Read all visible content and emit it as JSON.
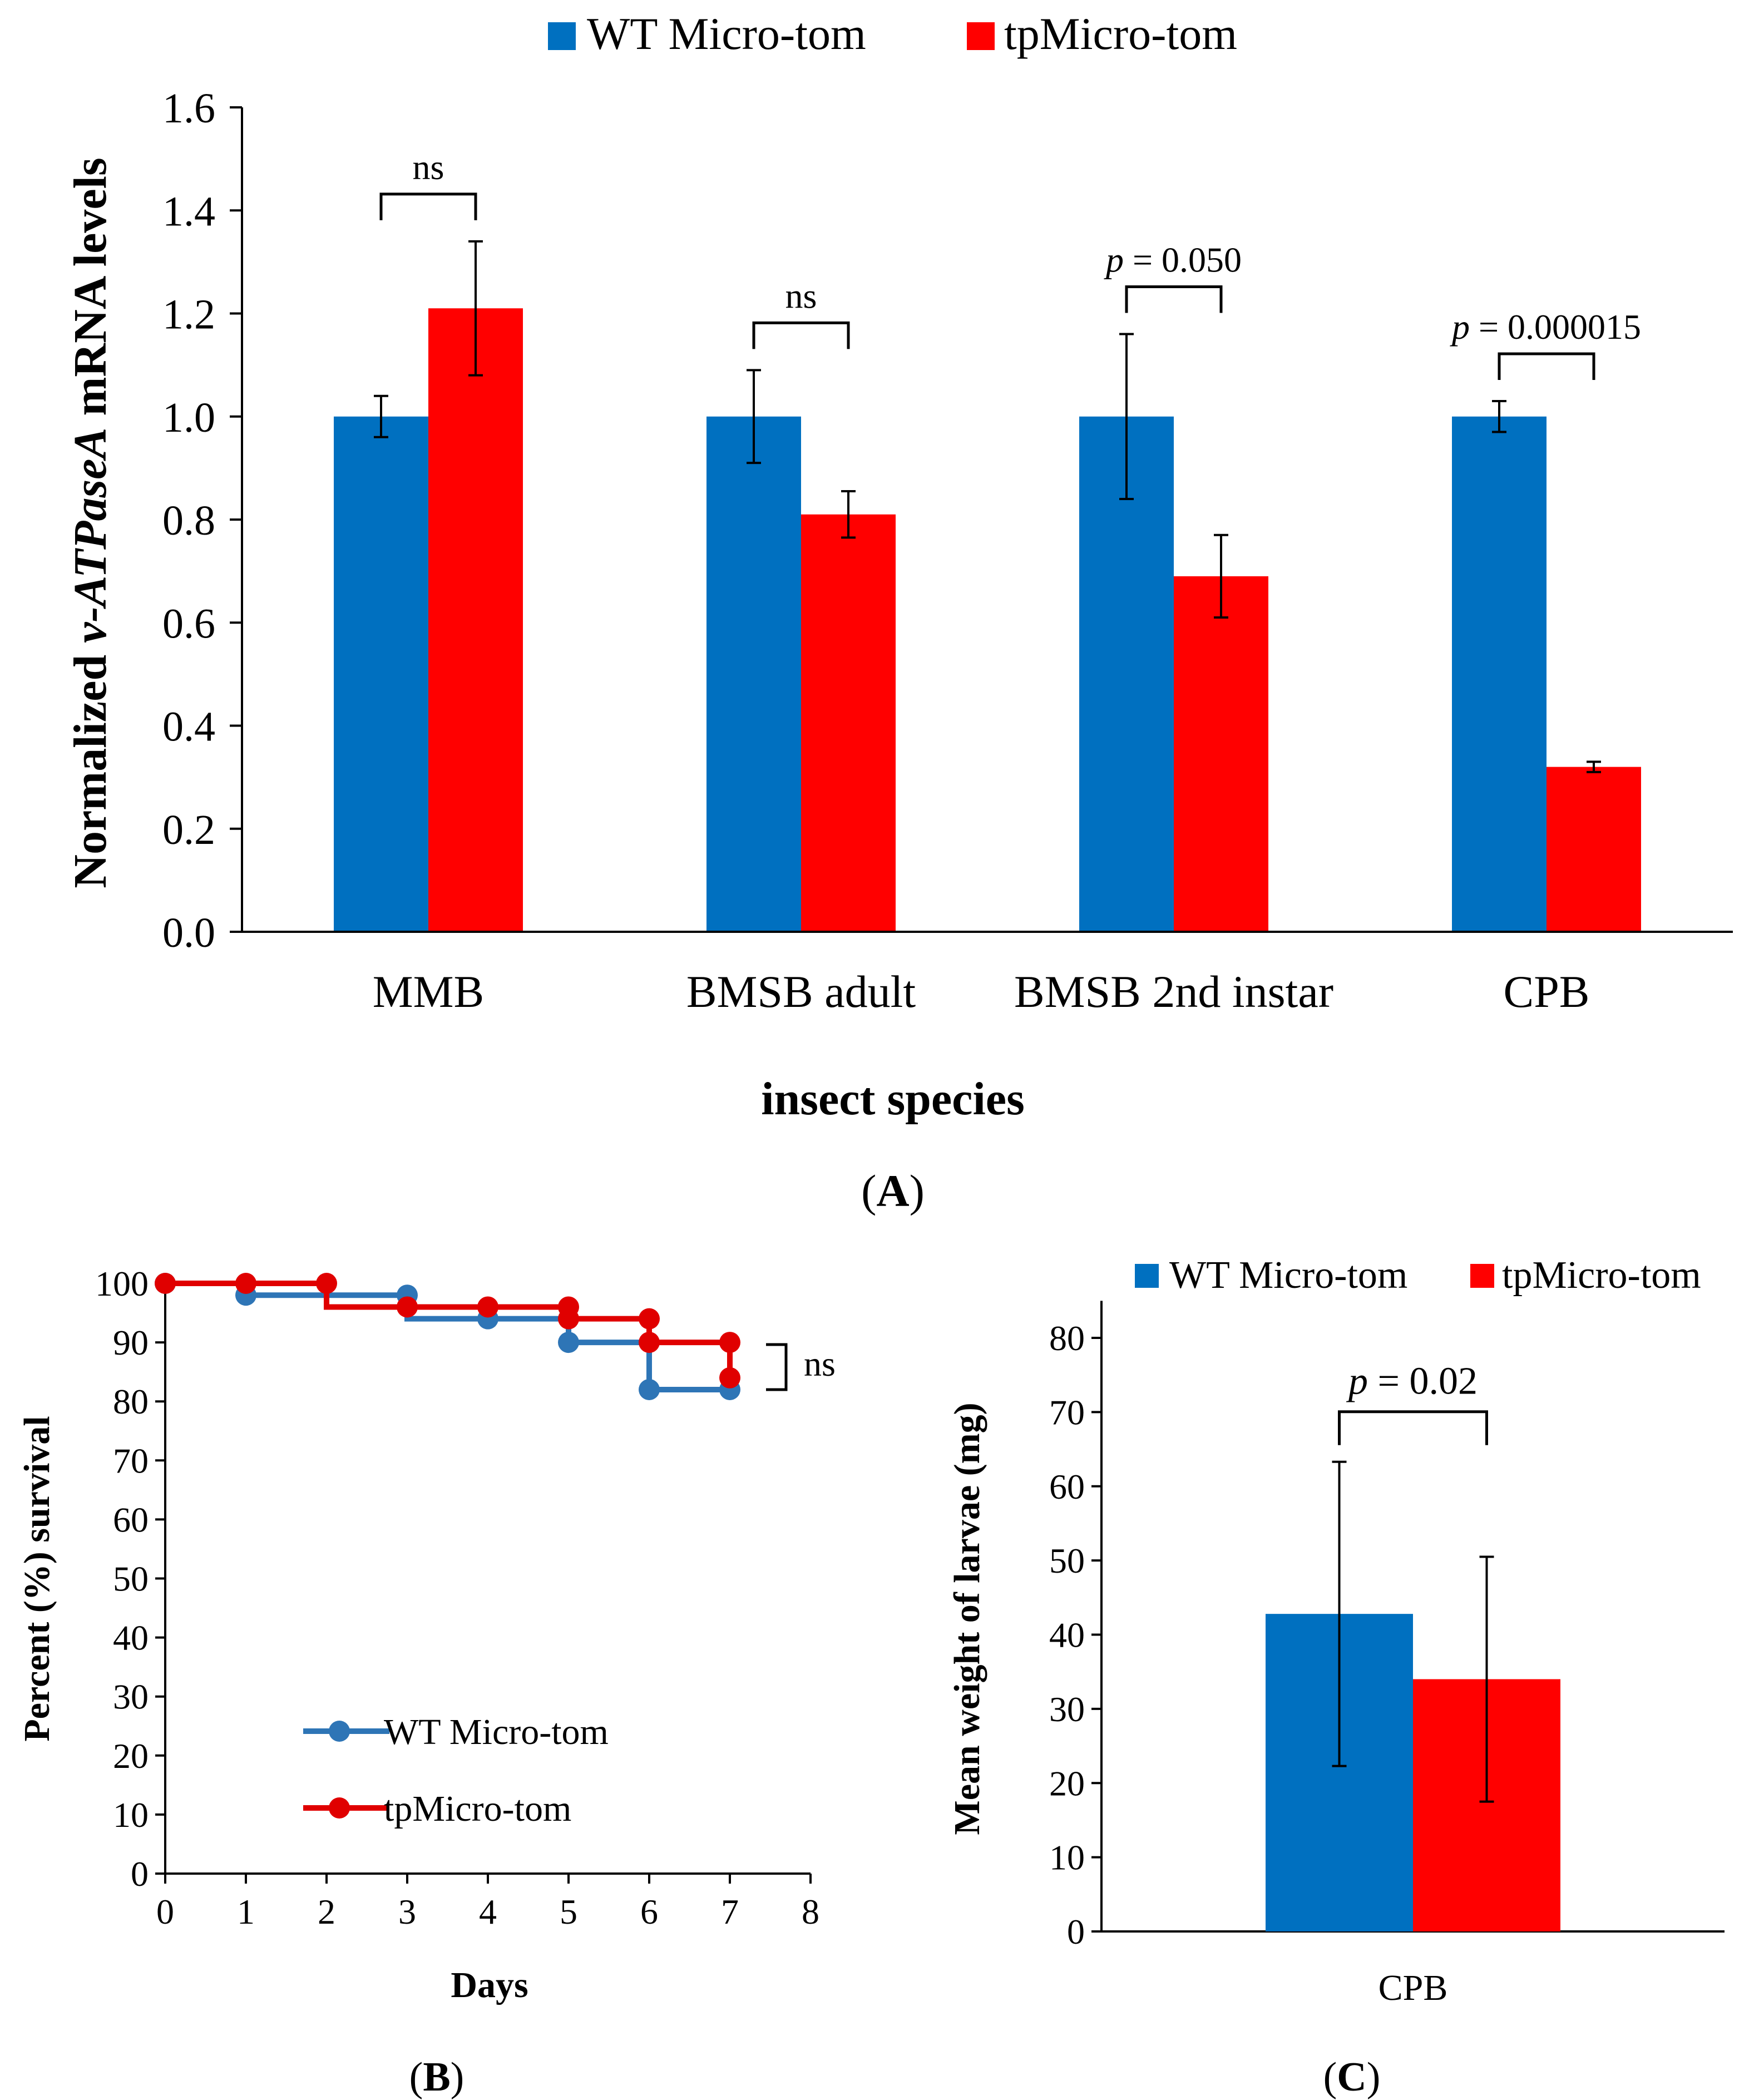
{
  "colors": {
    "wt": "#0070C0",
    "tp": "#FF0000",
    "wt_line": "#2E75B6",
    "tp_line": "#E00000",
    "axis": "#000000"
  },
  "chart_data": [
    {
      "id": "A",
      "type": "bar",
      "panel_label": "A",
      "title": "",
      "legend": [
        "WT Micro-tom",
        "tpMicro-tom"
      ],
      "ylabel_prefix": "Normalized ",
      "ylabel_italic": "v-ATPaseA",
      "ylabel_suffix": " mRNA levels",
      "xlabel": "insect species",
      "ylim": [
        0,
        1.6
      ],
      "yticks": [
        "0.0",
        "0.2",
        "0.4",
        "0.6",
        "0.8",
        "1.0",
        "1.2",
        "1.4",
        "1.6"
      ],
      "categories": [
        "MMB",
        "BMSB adult",
        "BMSB 2nd instar",
        "CPB"
      ],
      "series": [
        {
          "name": "WT Micro-tom",
          "values": [
            1.0,
            1.0,
            1.0,
            1.0
          ],
          "errors": [
            0.04,
            0.09,
            0.16,
            0.03
          ]
        },
        {
          "name": "tpMicro-tom",
          "values": [
            1.21,
            0.81,
            0.69,
            0.32
          ],
          "errors": [
            0.13,
            0.045,
            0.08,
            0.01
          ]
        }
      ],
      "annotations": [
        {
          "category": "MMB",
          "label": "ns",
          "italic_p": false
        },
        {
          "category": "BMSB adult",
          "label": "ns",
          "italic_p": false
        },
        {
          "category": "BMSB 2nd instar",
          "p_prefix": "p",
          "label": " = 0.050",
          "italic_p": true
        },
        {
          "category": "CPB",
          "p_prefix": "p",
          "label": " = 0.000015",
          "italic_p": true
        }
      ]
    },
    {
      "id": "B",
      "type": "line",
      "panel_label": "B",
      "xlabel": "Days",
      "ylabel": "Percent (%) survival",
      "xlim": [
        0,
        8
      ],
      "ylim": [
        0,
        100
      ],
      "xticks": [
        "0",
        "1",
        "2",
        "3",
        "4",
        "5",
        "6",
        "7",
        "8"
      ],
      "yticks": [
        "0",
        "10",
        "20",
        "30",
        "40",
        "50",
        "60",
        "70",
        "80",
        "90",
        "100"
      ],
      "step": true,
      "series": [
        {
          "name": "WT Micro-tom",
          "steps": [
            [
              0,
              100
            ],
            [
              1,
              98
            ],
            [
              3,
              94
            ],
            [
              5,
              90
            ],
            [
              6,
              82
            ],
            [
              7,
              82
            ]
          ],
          "markers": [
            [
              0,
              100
            ],
            [
              1,
              98
            ],
            [
              3,
              98
            ],
            [
              4,
              94
            ],
            [
              5,
              90
            ],
            [
              6,
              82
            ],
            [
              7,
              82
            ]
          ]
        },
        {
          "name": "tpMicro-tom",
          "steps": [
            [
              0,
              100
            ],
            [
              2,
              96
            ],
            [
              5,
              94
            ],
            [
              6,
              90
            ],
            [
              7,
              84
            ]
          ],
          "markers": [
            [
              0,
              100
            ],
            [
              1,
              100
            ],
            [
              2,
              100
            ],
            [
              3,
              96
            ],
            [
              4,
              96
            ],
            [
              5,
              96
            ],
            [
              5,
              94
            ],
            [
              6,
              94
            ],
            [
              6,
              90
            ],
            [
              7,
              90
            ],
            [
              7,
              84
            ]
          ]
        }
      ],
      "annotation": "ns"
    },
    {
      "id": "C",
      "type": "bar",
      "panel_label": "C",
      "legend": [
        "WT Micro-tom",
        "tpMicro-tom"
      ],
      "ylabel": "Mean weight of larvae (mg)",
      "ylim": [
        0,
        85
      ],
      "yticks": [
        "0",
        "10",
        "20",
        "30",
        "40",
        "50",
        "60",
        "70",
        "80"
      ],
      "categories": [
        "CPB"
      ],
      "series": [
        {
          "name": "WT Micro-tom",
          "values": [
            42.8
          ],
          "errors": [
            20.5
          ]
        },
        {
          "name": "tpMicro-tom",
          "values": [
            34
          ],
          "errors": [
            16.5
          ]
        }
      ],
      "annotation": {
        "p_prefix": "p",
        "label": " = 0.02"
      }
    }
  ]
}
